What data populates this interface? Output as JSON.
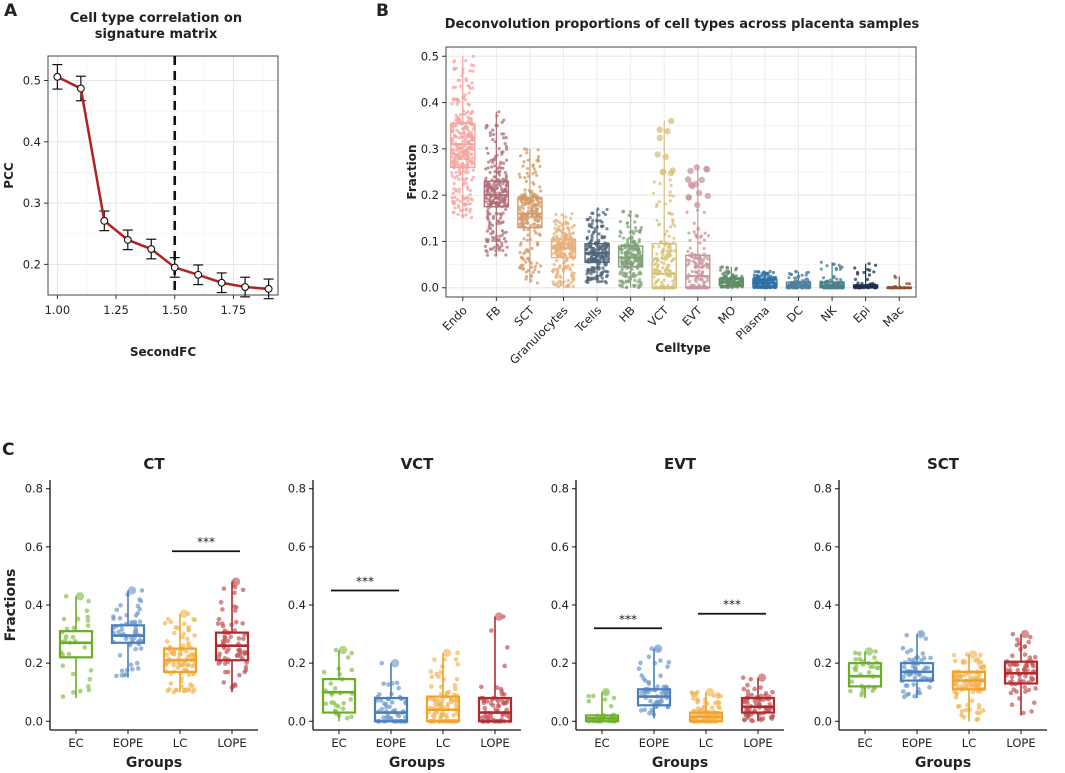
{
  "panels": {
    "a": {
      "letter": "A",
      "title_line1": "Cell type correlation on",
      "title_line2": "signature matrix"
    },
    "b": {
      "letter": "B",
      "title": "Deconvolution proportions of cell types across placenta samples"
    },
    "c": {
      "letter": "C"
    }
  },
  "chart_data": [
    {
      "id": "A",
      "type": "line",
      "title": "Cell type correlation on signature matrix",
      "xlabel": "SecondFC",
      "ylabel": "PCC",
      "xlim": [
        0.96,
        1.94
      ],
      "ylim": [
        0.15,
        0.54
      ],
      "xticks": [
        1.0,
        1.25,
        1.5,
        1.75
      ],
      "xtick_labels": [
        "1.00",
        "1.25",
        "1.50",
        "1.75"
      ],
      "yticks": [
        0.2,
        0.3,
        0.4,
        0.5
      ],
      "ytick_labels": [
        "0.2",
        "0.3",
        "0.4",
        "0.5"
      ],
      "vline_x": 1.5,
      "x": [
        1.0,
        1.1,
        1.2,
        1.3,
        1.4,
        1.5,
        1.6,
        1.7,
        1.8,
        1.9
      ],
      "y": [
        0.506,
        0.487,
        0.271,
        0.24,
        0.225,
        0.195,
        0.183,
        0.17,
        0.163,
        0.16
      ],
      "err": [
        0.02,
        0.02,
        0.016,
        0.016,
        0.016,
        0.016,
        0.016,
        0.016,
        0.016,
        0.016
      ],
      "line_color": "#b22222",
      "grid": true
    },
    {
      "id": "B",
      "type": "box",
      "title": "Deconvolution proportions of cell types across placenta samples",
      "xlabel": "Celltype",
      "ylabel": "Fraction",
      "ylim": [
        -0.02,
        0.52
      ],
      "yticks": [
        0.0,
        0.1,
        0.2,
        0.3,
        0.4,
        0.5
      ],
      "ytick_labels": [
        "0.0",
        "0.1",
        "0.2",
        "0.3",
        "0.4",
        "0.5"
      ],
      "categories": [
        "Endo",
        "FB",
        "SCT",
        "Granulocytes",
        "Tcells",
        "HB",
        "VCT",
        "EVT",
        "MO",
        "Plasma",
        "DC",
        "NK",
        "Epi",
        "Mac"
      ],
      "boxes": [
        {
          "min": 0.15,
          "q1": 0.26,
          "median": 0.31,
          "q3": 0.355,
          "max": 0.5
        },
        {
          "min": 0.07,
          "q1": 0.175,
          "median": 0.2,
          "q3": 0.23,
          "max": 0.38
        },
        {
          "min": 0.01,
          "q1": 0.13,
          "median": 0.16,
          "q3": 0.195,
          "max": 0.3
        },
        {
          "min": 0.0,
          "q1": 0.065,
          "median": 0.085,
          "q3": 0.105,
          "max": 0.16
        },
        {
          "min": 0.01,
          "q1": 0.055,
          "median": 0.075,
          "q3": 0.095,
          "max": 0.17
        },
        {
          "min": 0.0,
          "q1": 0.045,
          "median": 0.065,
          "q3": 0.09,
          "max": 0.165
        },
        {
          "min": 0.0,
          "q1": 0.0,
          "median": 0.03,
          "q3": 0.095,
          "max": 0.36
        },
        {
          "min": 0.0,
          "q1": 0.0,
          "median": 0.025,
          "q3": 0.07,
          "max": 0.26
        },
        {
          "min": 0.0,
          "q1": 0.005,
          "median": 0.012,
          "q3": 0.02,
          "max": 0.045
        },
        {
          "min": 0.0,
          "q1": 0.003,
          "median": 0.01,
          "q3": 0.018,
          "max": 0.035
        },
        {
          "min": 0.0,
          "q1": 0.0,
          "median": 0.004,
          "q3": 0.012,
          "max": 0.035
        },
        {
          "min": 0.0,
          "q1": 0.0,
          "median": 0.004,
          "q3": 0.012,
          "max": 0.055
        },
        {
          "min": 0.0,
          "q1": 0.0,
          "median": 0.002,
          "q3": 0.006,
          "max": 0.052
        },
        {
          "min": 0.0,
          "q1": 0.0,
          "median": 0.0,
          "q3": 0.001,
          "max": 0.025
        }
      ],
      "colors": [
        "#f4a3a0",
        "#b06f78",
        "#d19a66",
        "#e8b07c",
        "#4f6478",
        "#7fa078",
        "#d8c07a",
        "#c8969c",
        "#5e8e66",
        "#2f6fa2",
        "#4e7fa0",
        "#4a8088",
        "#1c2f4a",
        "#8a4e34"
      ],
      "grid": true
    },
    {
      "id": "C-CT",
      "type": "box",
      "title": "CT",
      "xlabel": "Groups",
      "ylabel": "Fractions",
      "ylim": [
        -0.03,
        0.83
      ],
      "yticks": [
        0.0,
        0.2,
        0.4,
        0.6,
        0.8
      ],
      "ytick_labels": [
        "0.0",
        "0.2",
        "0.4",
        "0.6",
        "0.8"
      ],
      "categories": [
        "EC",
        "EOPE",
        "LC",
        "LOPE"
      ],
      "boxes": [
        {
          "min": 0.08,
          "q1": 0.22,
          "median": 0.27,
          "q3": 0.31,
          "max": 0.43
        },
        {
          "min": 0.15,
          "q1": 0.27,
          "median": 0.295,
          "q3": 0.33,
          "max": 0.45
        },
        {
          "min": 0.1,
          "q1": 0.17,
          "median": 0.21,
          "q3": 0.25,
          "max": 0.37
        },
        {
          "min": 0.1,
          "q1": 0.21,
          "median": 0.26,
          "q3": 0.305,
          "max": 0.48
        }
      ],
      "significance": [
        {
          "from": "LC",
          "to": "LOPE",
          "y": 0.585,
          "label": "***"
        }
      ]
    },
    {
      "id": "C-VCT",
      "type": "box",
      "title": "VCT",
      "xlabel": "Groups",
      "ylabel": "",
      "ylim": [
        -0.03,
        0.83
      ],
      "yticks": [
        0.0,
        0.2,
        0.4,
        0.6,
        0.8
      ],
      "ytick_labels": [
        "0.0",
        "0.2",
        "0.4",
        "0.6",
        "0.8"
      ],
      "categories": [
        "EC",
        "EOPE",
        "LC",
        "LOPE"
      ],
      "boxes": [
        {
          "min": 0.0,
          "q1": 0.03,
          "median": 0.1,
          "q3": 0.145,
          "max": 0.245
        },
        {
          "min": 0.0,
          "q1": 0.0,
          "median": 0.03,
          "q3": 0.08,
          "max": 0.2
        },
        {
          "min": 0.0,
          "q1": 0.0,
          "median": 0.04,
          "q3": 0.085,
          "max": 0.235
        },
        {
          "min": 0.0,
          "q1": 0.0,
          "median": 0.03,
          "q3": 0.08,
          "max": 0.36
        }
      ],
      "significance": [
        {
          "from": "EC",
          "to": "EOPE",
          "y": 0.45,
          "label": "***"
        }
      ]
    },
    {
      "id": "C-EVT",
      "type": "box",
      "title": "EVT",
      "xlabel": "Groups",
      "ylabel": "",
      "ylim": [
        -0.03,
        0.83
      ],
      "yticks": [
        0.0,
        0.2,
        0.4,
        0.6,
        0.8
      ],
      "ytick_labels": [
        "0.0",
        "0.2",
        "0.4",
        "0.6",
        "0.8"
      ],
      "categories": [
        "EC",
        "EOPE",
        "LC",
        "LOPE"
      ],
      "boxes": [
        {
          "min": 0.0,
          "q1": 0.0,
          "median": 0.01,
          "q3": 0.02,
          "max": 0.1
        },
        {
          "min": 0.01,
          "q1": 0.055,
          "median": 0.085,
          "q3": 0.11,
          "max": 0.25
        },
        {
          "min": 0.0,
          "q1": 0.0,
          "median": 0.015,
          "q3": 0.03,
          "max": 0.1
        },
        {
          "min": 0.0,
          "q1": 0.03,
          "median": 0.05,
          "q3": 0.08,
          "max": 0.15
        }
      ],
      "significance": [
        {
          "from": "EC",
          "to": "EOPE",
          "y": 0.32,
          "label": "***"
        },
        {
          "from": "LC",
          "to": "LOPE",
          "y": 0.37,
          "label": "***"
        }
      ]
    },
    {
      "id": "C-SCT",
      "type": "box",
      "title": "SCT",
      "xlabel": "Groups",
      "ylabel": "",
      "ylim": [
        -0.03,
        0.83
      ],
      "yticks": [
        0.0,
        0.2,
        0.4,
        0.6,
        0.8
      ],
      "ytick_labels": [
        "0.0",
        "0.2",
        "0.4",
        "0.6",
        "0.8"
      ],
      "categories": [
        "EC",
        "EOPE",
        "LC",
        "LOPE"
      ],
      "boxes": [
        {
          "min": 0.08,
          "q1": 0.12,
          "median": 0.155,
          "q3": 0.2,
          "max": 0.24
        },
        {
          "min": 0.08,
          "q1": 0.14,
          "median": 0.17,
          "q3": 0.2,
          "max": 0.3
        },
        {
          "min": 0.0,
          "q1": 0.11,
          "median": 0.14,
          "q3": 0.17,
          "max": 0.23
        },
        {
          "min": 0.02,
          "q1": 0.13,
          "median": 0.165,
          "q3": 0.205,
          "max": 0.3
        }
      ],
      "significance": []
    }
  ],
  "group_colors": [
    "#6aae23",
    "#4a7fbd",
    "#f0a22a",
    "#b22a2e"
  ]
}
